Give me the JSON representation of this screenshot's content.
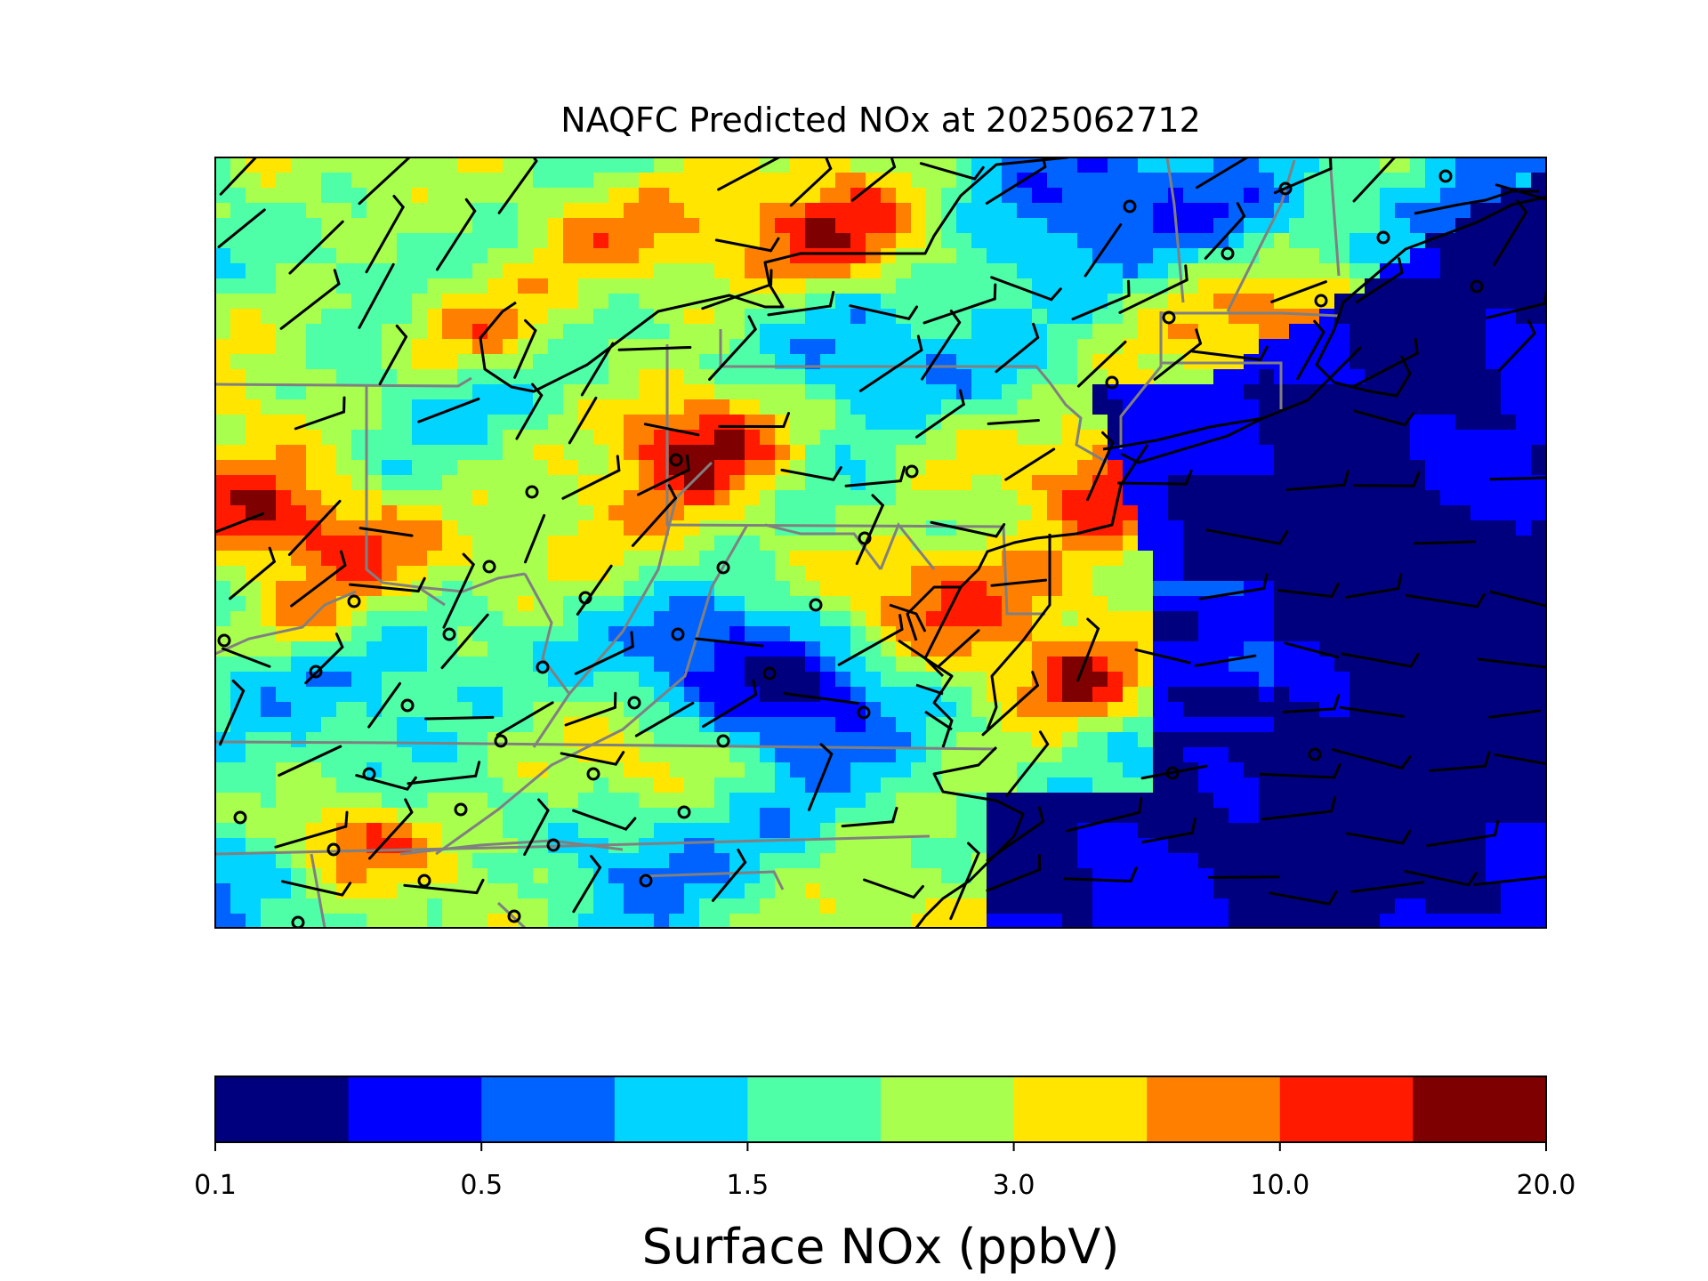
{
  "title": "NAQFC Predicted NOx at 2025062712",
  "colorbar": {
    "label": "Surface NOx (ppbV)",
    "tick_labels": [
      "0.1",
      "0.5",
      "1.5",
      "3.0",
      "10.0",
      "20.0"
    ],
    "colors": [
      "#00007f",
      "#0000ff",
      "#0062ff",
      "#00d4ff",
      "#4effa8",
      "#a8ff4e",
      "#ffe500",
      "#ff7f00",
      "#ff1a00",
      "#7f0000"
    ]
  },
  "colors": {
    "coastline": "#000000",
    "state_border": "#808080",
    "frame": "#000000"
  },
  "chart_data": {
    "type": "heatmap",
    "title": "NAQFC Predicted NOx at 2025062712",
    "colorbar_label": "Surface NOx (ppbV)",
    "colorbar_ticks": [
      0.1,
      0.5,
      1.5,
      3.0,
      10.0,
      20.0
    ],
    "colorbar_levels": 10,
    "overlays": [
      "wind barbs",
      "monitoring sites (open circles)",
      "coastlines",
      "state borders"
    ]
  }
}
